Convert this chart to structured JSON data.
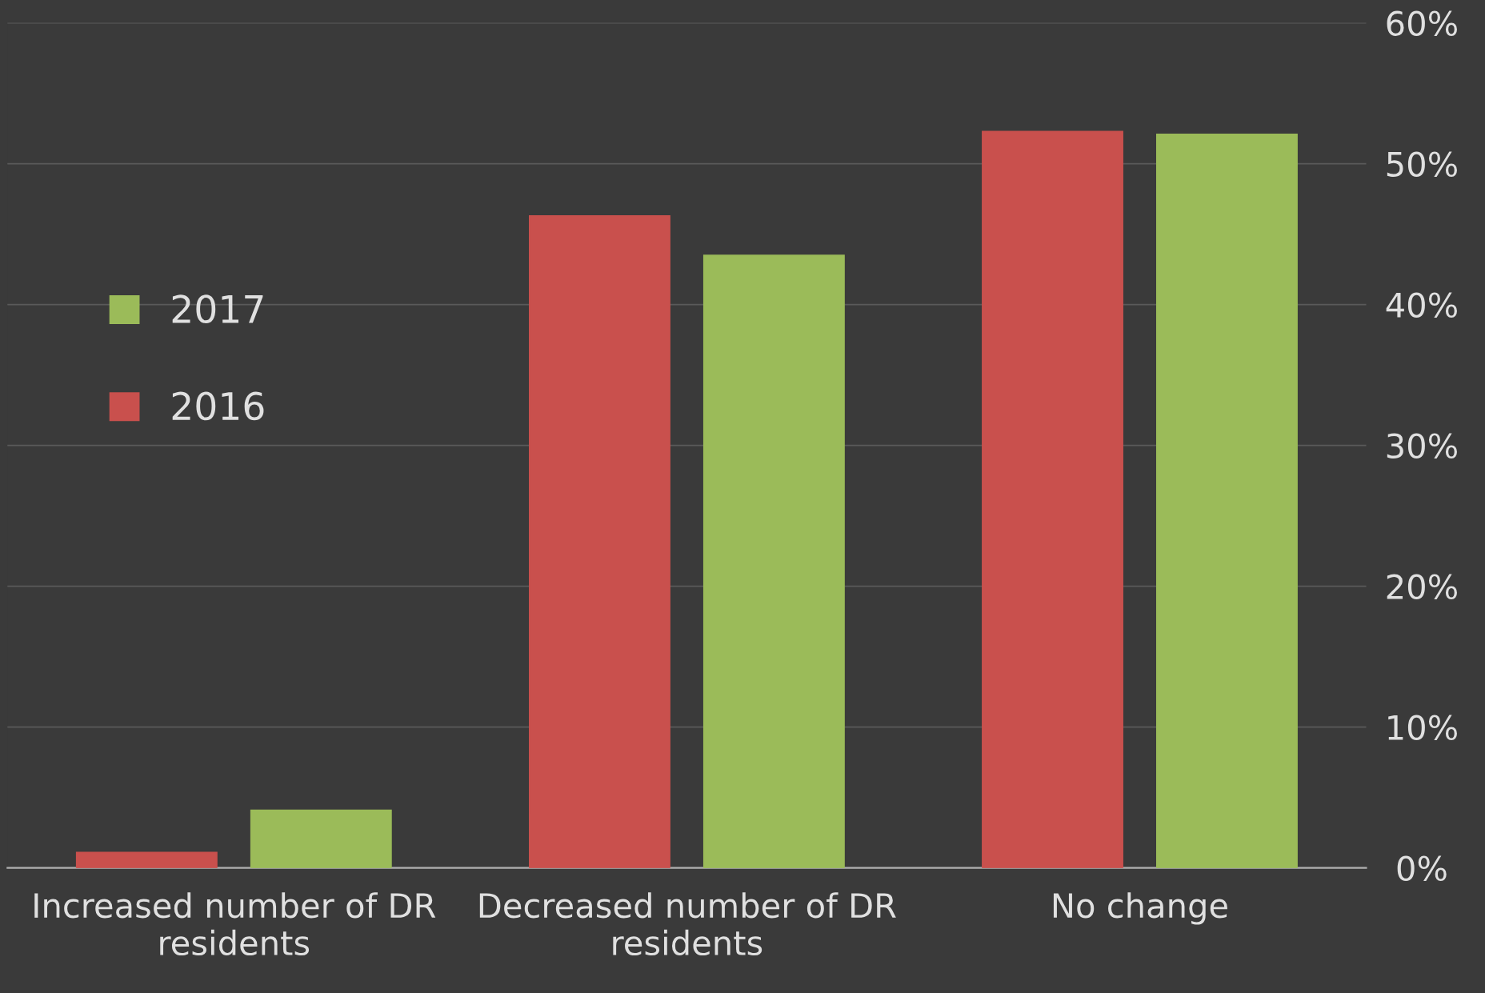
{
  "chart_data": {
    "type": "bar",
    "categories": [
      "Increased number of DR\nresidents",
      "Decreased number of DR\nresidents",
      "No change"
    ],
    "series": [
      {
        "name": "2016",
        "color": "#c9504d",
        "values": [
          1.1,
          46.3,
          52.3
        ]
      },
      {
        "name": "2017",
        "color": "#9bbb59",
        "values": [
          4.1,
          43.5,
          52.1
        ]
      }
    ],
    "ylim": [
      0,
      60
    ],
    "yticks": [
      {
        "value": 0,
        "label": "0%"
      },
      {
        "value": 10,
        "label": "10%"
      },
      {
        "value": 20,
        "label": "20%"
      },
      {
        "value": 30,
        "label": "30%"
      },
      {
        "value": 40,
        "label": "40%"
      },
      {
        "value": 50,
        "label": "50%"
      },
      {
        "value": 60,
        "label": "60%"
      }
    ],
    "grid": "y",
    "legend": "left"
  }
}
